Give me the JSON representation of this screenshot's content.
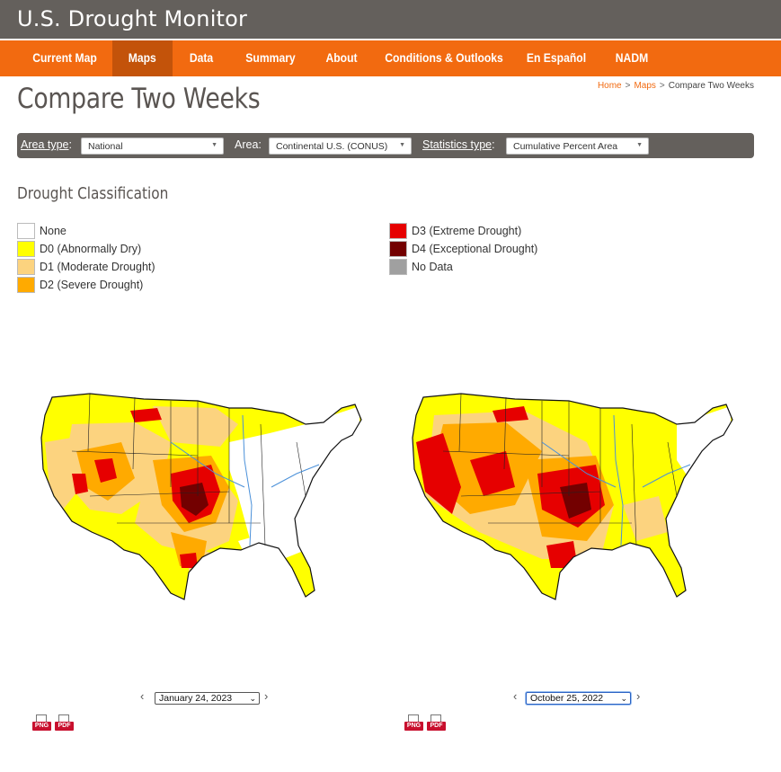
{
  "site": {
    "title": "U.S. Drought Monitor"
  },
  "nav": {
    "items": [
      {
        "label": "Current Map"
      },
      {
        "label": "Maps"
      },
      {
        "label": "Data"
      },
      {
        "label": "Summary"
      },
      {
        "label": "About"
      },
      {
        "label": "Conditions & Outlooks"
      },
      {
        "label": "En Español"
      },
      {
        "label": "NADM"
      }
    ],
    "active": "Maps",
    "colors": {
      "bar": "#f26a10",
      "active": "#c3530a"
    }
  },
  "breadcrumb": {
    "home": "Home",
    "sep": ">",
    "maps": "Maps",
    "current": "Compare Two Weeks"
  },
  "page": {
    "title": "Compare Two Weeks"
  },
  "filters": {
    "area_type_label": "Area type",
    "area_type_colon": ":",
    "area_type_value": "National",
    "area_label": "Area:",
    "area_value": "Continental U.S. (CONUS)",
    "stats_label": "Statistics type",
    "stats_colon": ":",
    "stats_value": "Cumulative Percent Area"
  },
  "legend": {
    "title": "Drought Classification",
    "items": [
      {
        "label": "None",
        "color": "#ffffff"
      },
      {
        "label": "D0 (Abnormally Dry)",
        "color": "#ffff00"
      },
      {
        "label": "D1 (Moderate Drought)",
        "color": "#fcd37f"
      },
      {
        "label": "D2 (Severe Drought)",
        "color": "#ffaa00"
      },
      {
        "label": "D3 (Extreme Drought)",
        "color": "#e60000"
      },
      {
        "label": "D4 (Exceptional Drought)",
        "color": "#730000"
      },
      {
        "label": "No Data",
        "color": "#a0a0a0"
      }
    ]
  },
  "maps": {
    "left": {
      "date": "January 24, 2023"
    },
    "right": {
      "date": "October 25, 2022"
    }
  },
  "downloads": {
    "png": "PNG",
    "pdf": "PDF"
  },
  "icons": {
    "prev": "chevron-left-icon",
    "next": "chevron-right-icon",
    "caret": "caret-down-icon"
  }
}
